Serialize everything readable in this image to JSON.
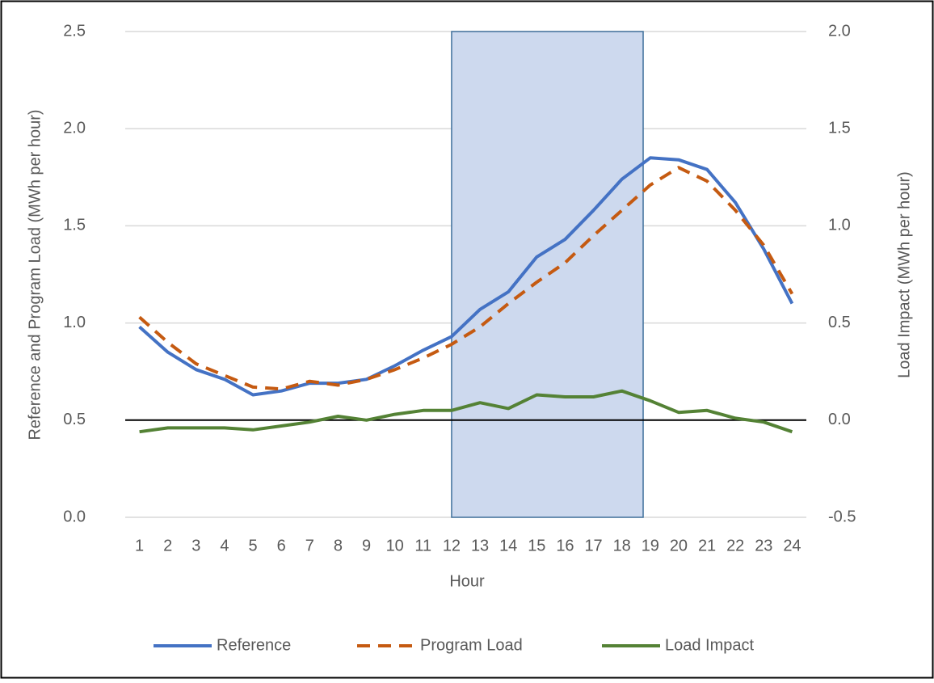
{
  "chart_data": {
    "type": "line",
    "x_label": "Hour",
    "y_label": "Reference and Program Load (MWh per hour)",
    "y2_label": "Load Impact (MWh per hour)",
    "categories": [
      "1",
      "2",
      "3",
      "4",
      "5",
      "6",
      "7",
      "8",
      "9",
      "10",
      "11",
      "12",
      "13",
      "14",
      "15",
      "16",
      "17",
      "18",
      "19",
      "20",
      "21",
      "22",
      "23",
      "24"
    ],
    "series": [
      {
        "name": "Reference",
        "color": "#4472c4",
        "dash": false,
        "values": [
          0.98,
          0.85,
          0.76,
          0.71,
          0.63,
          0.65,
          0.69,
          0.69,
          0.71,
          0.78,
          0.86,
          0.93,
          1.07,
          1.16,
          1.34,
          1.43,
          1.58,
          1.74,
          1.85,
          1.84,
          1.79,
          1.62,
          1.38,
          1.1
        ]
      },
      {
        "name": "Program Load",
        "color": "#c55a11",
        "dash": true,
        "values": [
          1.03,
          0.9,
          0.79,
          0.73,
          0.67,
          0.66,
          0.7,
          0.68,
          0.71,
          0.76,
          0.82,
          0.89,
          0.98,
          1.1,
          1.21,
          1.31,
          1.45,
          1.58,
          1.71,
          1.8,
          1.73,
          1.58,
          1.4,
          1.15
        ]
      },
      {
        "name": "Load Impact",
        "color": "#548235",
        "dash": false,
        "axis": "y2",
        "values": [
          -0.06,
          -0.04,
          -0.04,
          -0.04,
          -0.05,
          -0.03,
          -0.01,
          0.02,
          0.0,
          0.03,
          0.05,
          0.05,
          0.09,
          0.06,
          0.13,
          0.12,
          0.12,
          0.15,
          0.1,
          0.04,
          0.05,
          0.01,
          -0.01,
          -0.06
        ]
      }
    ],
    "ylim": [
      0,
      2.5
    ],
    "yticks": [
      {
        "value": 0,
        "label": "0.0"
      },
      0.5,
      {
        "value": 1,
        "label": "1.0"
      },
      1.5,
      {
        "value": 2,
        "label": "2.0"
      },
      2.5
    ],
    "y2lim": [
      -0.5,
      2.0
    ],
    "y2ticks": [
      -0.5,
      {
        "value": 0,
        "label": "0.0"
      },
      0.5,
      {
        "value": 1,
        "label": "1.0"
      },
      1.5,
      {
        "value": 2,
        "label": "2.0"
      }
    ],
    "grid": true,
    "y2_zero_line": true,
    "highlight_x": [
      12,
      18.75
    ],
    "highlight_color": "#cdd9ee",
    "legend": "bottom"
  }
}
